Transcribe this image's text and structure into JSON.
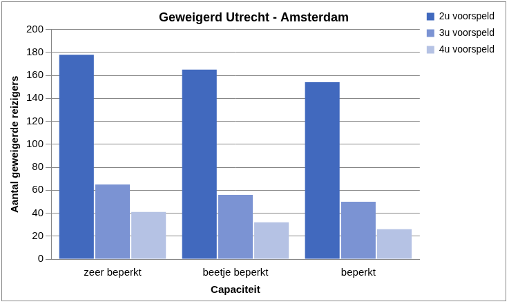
{
  "chart_data": {
    "type": "bar",
    "title": "Geweigerd Utrecht - Amsterdam",
    "x_label": "Capaciteit",
    "y_label": "Aantal geweigerde reizigers",
    "categories": [
      "zeer beperkt",
      "beetje beperkt",
      "beperkt"
    ],
    "series": [
      {
        "name": "2u voorspeld",
        "color": "#4169be",
        "values": [
          178,
          165,
          154
        ]
      },
      {
        "name": "3u voorspeld",
        "color": "#7b93d3",
        "values": [
          65,
          56,
          50
        ]
      },
      {
        "name": "4u voorspeld",
        "color": "#b5c2e4",
        "values": [
          41,
          32,
          26
        ]
      }
    ],
    "ylim": [
      0,
      200
    ],
    "yticks": [
      0,
      20,
      40,
      60,
      80,
      100,
      120,
      140,
      160,
      180,
      200
    ],
    "grid": true,
    "legend": "right"
  }
}
